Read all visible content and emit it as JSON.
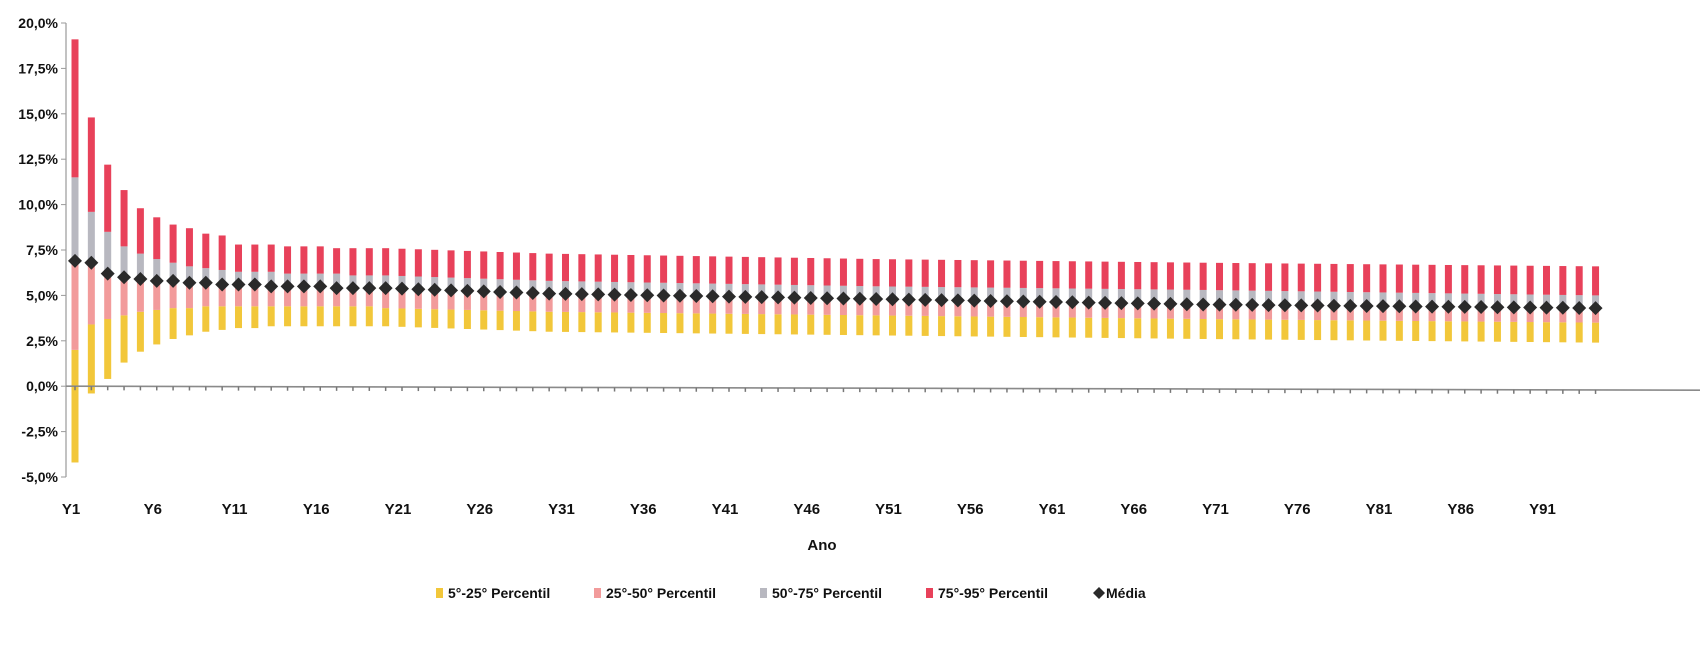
{
  "chart_data": {
    "type": "bar",
    "stacked": true,
    "title": "",
    "xlabel": "Ano",
    "ylabel": "",
    "ylim": [
      -5.0,
      20.0
    ],
    "y_ticks": [
      -5.0,
      -2.5,
      0.0,
      2.5,
      5.0,
      7.5,
      10.0,
      12.5,
      15.0,
      17.5,
      20.0
    ],
    "y_tick_labels": [
      "-5,0%",
      "-2,5%",
      "0,0%",
      "2,5%",
      "5,0%",
      "7,5%",
      "10,0%",
      "12,5%",
      "15,0%",
      "17,5%",
      "20,0%"
    ],
    "x_tick_labels": [
      "Y1",
      "Y6",
      "Y11",
      "Y16",
      "Y21",
      "Y26",
      "Y31",
      "Y36",
      "Y41",
      "Y46",
      "Y51",
      "Y56",
      "Y61",
      "Y66",
      "Y71",
      "Y76",
      "Y81",
      "Y86",
      "Y91"
    ],
    "n_years": 94,
    "grid": false,
    "legend_position": "bottom",
    "colors": {
      "p5_25": "#f2c73a",
      "p25_50": "#f29b9b",
      "p50_75": "#b8b8c0",
      "p75_95": "#e8415a",
      "media": "#2a2a2a"
    },
    "legend": [
      {
        "key": "p5_25",
        "label": "5°-25° Percentil"
      },
      {
        "key": "p25_50",
        "label": "25°-50° Percentil"
      },
      {
        "key": "p50_75",
        "label": "50°-75° Percentil"
      },
      {
        "key": "p75_95",
        "label": "75°-95° Percentil"
      },
      {
        "key": "media",
        "label": "Média"
      }
    ],
    "series": [
      {
        "name": "5°-25° Percentil",
        "key": "p5_25",
        "years": [
          1,
          2,
          3,
          4,
          5,
          6,
          7,
          8,
          9,
          10,
          11,
          12,
          13,
          14,
          15,
          16,
          17,
          18,
          19,
          20,
          30,
          50,
          70,
          94
        ],
        "from": [
          -4.2,
          -0.4,
          0.4,
          1.3,
          1.9,
          2.3,
          2.6,
          2.8,
          3.0,
          3.1,
          3.2,
          3.2,
          3.3,
          3.3,
          3.3,
          3.3,
          3.3,
          3.3,
          3.3,
          3.3,
          3.0,
          2.8,
          2.6,
          2.4
        ],
        "to": [
          2.0,
          3.4,
          3.7,
          3.9,
          4.1,
          4.2,
          4.3,
          4.3,
          4.4,
          4.4,
          4.4,
          4.4,
          4.4,
          4.4,
          4.4,
          4.4,
          4.4,
          4.4,
          4.4,
          4.3,
          4.1,
          3.9,
          3.7,
          3.5
        ]
      },
      {
        "name": "25°-50° Percentil",
        "key": "p25_50",
        "years": [
          1,
          2,
          3,
          4,
          5,
          6,
          7,
          8,
          9,
          10,
          11,
          12,
          13,
          14,
          15,
          16,
          17,
          18,
          19,
          20,
          30,
          50,
          70,
          94
        ],
        "from": [
          2.0,
          3.4,
          3.7,
          3.9,
          4.1,
          4.2,
          4.3,
          4.3,
          4.4,
          4.4,
          4.4,
          4.4,
          4.4,
          4.4,
          4.4,
          4.4,
          4.4,
          4.4,
          4.4,
          4.3,
          4.1,
          3.9,
          3.7,
          3.5
        ],
        "to": [
          6.8,
          6.7,
          6.2,
          6.0,
          5.9,
          5.8,
          5.8,
          5.7,
          5.7,
          5.6,
          5.6,
          5.6,
          5.6,
          5.5,
          5.5,
          5.5,
          5.5,
          5.4,
          5.4,
          5.4,
          5.1,
          4.8,
          4.6,
          4.3
        ]
      },
      {
        "name": "50°-75° Percentil",
        "key": "p50_75",
        "years": [
          1,
          2,
          3,
          4,
          5,
          6,
          7,
          8,
          9,
          10,
          11,
          12,
          13,
          14,
          15,
          16,
          17,
          18,
          19,
          20,
          30,
          50,
          70,
          94
        ],
        "from": [
          6.8,
          6.7,
          6.2,
          6.0,
          5.9,
          5.8,
          5.8,
          5.7,
          5.7,
          5.6,
          5.6,
          5.6,
          5.6,
          5.5,
          5.5,
          5.5,
          5.5,
          5.4,
          5.4,
          5.4,
          5.1,
          4.8,
          4.6,
          4.3
        ],
        "to": [
          11.5,
          9.6,
          8.5,
          7.7,
          7.3,
          7.0,
          6.8,
          6.6,
          6.5,
          6.4,
          6.3,
          6.3,
          6.3,
          6.2,
          6.2,
          6.2,
          6.2,
          6.1,
          6.1,
          6.1,
          5.8,
          5.5,
          5.3,
          5.0
        ]
      },
      {
        "name": "75°-95° Percentil",
        "key": "p75_95",
        "years": [
          1,
          2,
          3,
          4,
          5,
          6,
          7,
          8,
          9,
          10,
          11,
          12,
          13,
          14,
          15,
          16,
          17,
          18,
          19,
          20,
          30,
          50,
          70,
          94
        ],
        "from": [
          11.5,
          9.6,
          8.5,
          7.7,
          7.3,
          7.0,
          6.8,
          6.6,
          6.5,
          6.4,
          6.3,
          6.3,
          6.3,
          6.2,
          6.2,
          6.2,
          6.2,
          6.1,
          6.1,
          6.1,
          5.8,
          5.5,
          5.3,
          5.0
        ],
        "to": [
          19.1,
          14.8,
          12.2,
          10.8,
          9.8,
          9.3,
          8.9,
          8.7,
          8.4,
          8.3,
          7.8,
          7.8,
          7.8,
          7.7,
          7.7,
          7.7,
          7.6,
          7.6,
          7.6,
          7.6,
          7.3,
          7.0,
          6.8,
          6.6
        ]
      },
      {
        "name": "Média",
        "key": "media",
        "years": [
          1,
          2,
          3,
          4,
          5,
          6,
          7,
          8,
          9,
          10,
          11,
          12,
          13,
          14,
          15,
          16,
          17,
          18,
          19,
          20,
          30,
          50,
          70,
          94
        ],
        "values": [
          6.9,
          6.8,
          6.2,
          6.0,
          5.9,
          5.8,
          5.8,
          5.7,
          5.7,
          5.6,
          5.6,
          5.6,
          5.5,
          5.5,
          5.5,
          5.5,
          5.4,
          5.4,
          5.4,
          5.4,
          5.1,
          4.8,
          4.5,
          4.3
        ]
      }
    ]
  }
}
